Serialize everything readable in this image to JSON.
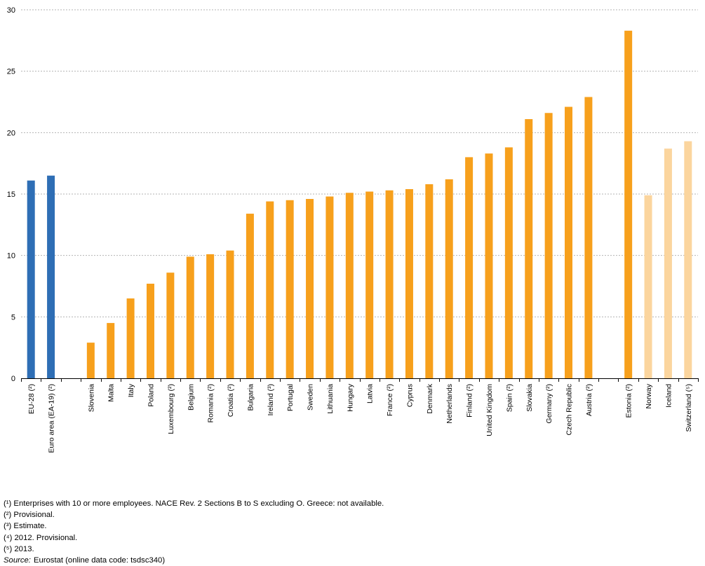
{
  "chart_data": {
    "type": "bar",
    "title": "",
    "xlabel": "",
    "ylabel": "",
    "ylim": [
      0,
      30
    ],
    "yticks": [
      0,
      5,
      10,
      15,
      20,
      25,
      30
    ],
    "grid": true,
    "gap_after": [
      1,
      27
    ],
    "categories": [
      "EU-28 (²)",
      "Euro area (EA-19) (²)",
      "Slovenia",
      "Malta",
      "Italy",
      "Poland",
      "Luxembourg (²)",
      "Belgium",
      "Romania (²)",
      "Croatia (²)",
      "Bulgaria",
      "Ireland (³)",
      "Portugal",
      "Sweden",
      "Lithuania",
      "Hungary",
      "Latvia",
      "France (²)",
      "Cyprus",
      "Denmark",
      "Netherlands",
      "Finland (²)",
      "United Kingdom",
      "Spain (²)",
      "Slovakia",
      "Germany (²)",
      "Czech Republic",
      "Austria (²)",
      "Estonia (²)",
      "Norway",
      "Iceland",
      "Switzerland (⁵)"
    ],
    "values": [
      16.1,
      16.5,
      2.9,
      4.5,
      6.5,
      7.7,
      8.6,
      9.9,
      10.1,
      10.4,
      13.4,
      14.4,
      14.5,
      14.6,
      14.8,
      15.1,
      15.2,
      15.3,
      15.4,
      15.8,
      16.2,
      18.0,
      18.3,
      18.8,
      21.1,
      21.6,
      22.1,
      22.9,
      28.3,
      14.9,
      18.7,
      19.3
    ],
    "bar_colors": [
      "#2e6eb5",
      "#2e6eb5",
      "#f7a01c",
      "#f7a01c",
      "#f7a01c",
      "#f7a01c",
      "#f7a01c",
      "#f7a01c",
      "#f7a01c",
      "#f7a01c",
      "#f7a01c",
      "#f7a01c",
      "#f7a01c",
      "#f7a01c",
      "#f7a01c",
      "#f7a01c",
      "#f7a01c",
      "#f7a01c",
      "#f7a01c",
      "#f7a01c",
      "#f7a01c",
      "#f7a01c",
      "#f7a01c",
      "#f7a01c",
      "#f7a01c",
      "#f7a01c",
      "#f7a01c",
      "#f7a01c",
      "#f7a01c",
      "#fbd59e",
      "#fbd59e",
      "#fbd59e"
    ]
  },
  "footnotes": [
    "(¹) Enterprises with 10 or more employees. NACE Rev. 2 Sections B to S excluding O. Greece: not available.",
    "(²) Provisional.",
    "(³) Estimate.",
    "(⁴) 2012. Provisional.",
    "(⁵) 2013."
  ],
  "source": {
    "label": "Source:",
    "text": "Eurostat (online data code: tsdsc340)"
  }
}
